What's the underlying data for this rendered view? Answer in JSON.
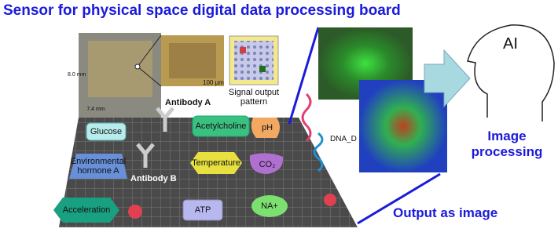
{
  "title": "Sensor for physical space digital data processing board",
  "chip": {
    "width_label": "7.4 mm",
    "height_label": "8.0 mm",
    "scale_label": "100 μm",
    "pattern_label": "Signal output pattern"
  },
  "antibodies": [
    "Antibody A",
    "Antibody B"
  ],
  "sensors": [
    "Glucose",
    "Acetylcholine",
    "pH",
    "Environmental hormone A",
    "Temperature",
    "CO₂",
    "Acceleration",
    "ATP",
    "NA+"
  ],
  "dna_label": "DNA_D",
  "ai_label": "AI",
  "processing_label": "Image processing",
  "output_label": "Output as image"
}
